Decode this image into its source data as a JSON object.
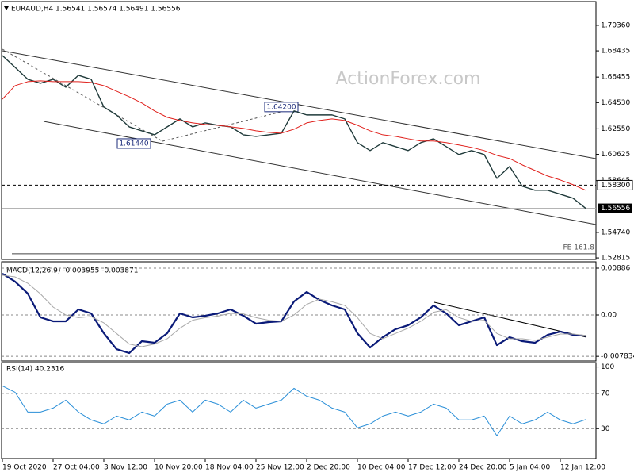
{
  "chart_data": [
    {
      "type": "line",
      "title": "EURAUD,H4 1.56541 1.56574 1.56491 1.56556",
      "watermark": "ActionForex.com",
      "ylim": [
        1.527,
        1.7215
      ],
      "yticks": [
        {
          "value": 1.7036,
          "label": "1.70360"
        },
        1.68435,
        1.66455,
        {
          "value": 1.6453,
          "label": "1.64530"
        },
        {
          "value": 1.6255,
          "label": "1.62550"
        },
        1.60625,
        1.58645,
        {
          "value": 1.5474,
          "label": "1.54740"
        },
        1.52815
      ],
      "grid": false,
      "series": [
        {
          "color": "#1f3a3a",
          "values": [
            1.6808,
            1.6719,
            1.6629,
            1.6599,
            1.6629,
            1.6569,
            1.6659,
            1.6629,
            1.642,
            1.636,
            1.627,
            1.624,
            1.621,
            1.627,
            1.633,
            1.627,
            1.63,
            1.6282,
            1.627,
            1.621,
            1.6198,
            1.621,
            1.6222,
            1.639,
            1.636,
            1.636,
            1.636,
            1.633,
            1.6151,
            1.6091,
            1.6151,
            1.6121,
            1.6091,
            1.6151,
            1.618,
            1.6121,
            1.6061,
            1.6091,
            1.6061,
            1.5881,
            1.5971,
            1.5822,
            1.5792,
            1.5792,
            1.5762,
            1.5732,
            1.56556
          ]
        },
        {
          "color": "#e0201c",
          "values": [
            1.6479,
            1.6581,
            1.6611,
            1.6617,
            1.6611,
            1.6611,
            1.6611,
            1.6605,
            1.6581,
            1.6539,
            1.6497,
            1.645,
            1.639,
            1.6342,
            1.6318,
            1.63,
            1.6288,
            1.6282,
            1.627,
            1.6258,
            1.624,
            1.6228,
            1.6222,
            1.6252,
            1.63,
            1.6318,
            1.633,
            1.6318,
            1.6282,
            1.624,
            1.621,
            1.6198,
            1.618,
            1.6163,
            1.6163,
            1.6151,
            1.6133,
            1.6115,
            1.6091,
            1.6055,
            1.6031,
            1.5983,
            1.5941,
            1.5899,
            1.5869,
            1.5834,
            1.5792
          ]
        }
      ],
      "levels": [
        {
          "label": "1.58300",
          "value": 1.583,
          "style": "dashed"
        },
        {
          "label": "1.56556",
          "value": 1.56556,
          "style": "current"
        },
        {
          "label": "FE 161.8",
          "value": 1.5313,
          "style": "solid"
        }
      ],
      "annotations": [
        {
          "label": "1.64200",
          "value": 1.642
        },
        {
          "label": "1.61440",
          "value": 1.6144
        }
      ]
    },
    {
      "type": "line",
      "title": "MACD(12,26,9) -0.003955 -0.003871",
      "ylim": [
        -0.00871,
        0.01006
      ],
      "yticks": [
        0.00886,
        {
          "value": 0,
          "label": "0.00"
        },
        -0.007834
      ],
      "grid": true,
      "series": [
        {
          "color": "#0a1a78",
          "values": [
            0.00781,
            0.00631,
            0.00406,
            -0.00045,
            -0.0012,
            -0.0012,
            0.00105,
            0.0003,
            -0.00345,
            -0.00646,
            -0.00721,
            -0.00496,
            -0.00526,
            -0.00345,
            0.0003,
            -0.00045,
            -0.00015,
            0.0003,
            0.00105,
            -0.00015,
            -0.00165,
            -0.00135,
            -0.0012,
            0.00255,
            0.00436,
            0.00285,
            0.0018,
            0.00105,
            -0.00345,
            -0.00616,
            -0.00421,
            -0.0027,
            -0.00195,
            -0.00045,
            0.0018,
            0.0003,
            -0.00195,
            -0.0012,
            -0.00045,
            -0.00571,
            -0.00421,
            -0.00496,
            -0.00526,
            -0.00376,
            -0.00315,
            -0.00376,
            -0.003955
          ]
        },
        {
          "color": "#a8a8a8",
          "values": [
            0.0075,
            0.0072,
            0.006,
            0.004,
            0.0015,
            0,
            -0.0005,
            -0.0003,
            -0.0015,
            -0.0035,
            -0.0055,
            -0.006,
            -0.0055,
            -0.0045,
            -0.0025,
            -0.001,
            -0.0005,
            -0.0002,
            0.0003,
            0.0002,
            -0.0005,
            -0.001,
            -0.0012,
            0,
            0.002,
            0.003,
            0.0025,
            0.0018,
            -0.0005,
            -0.0035,
            -0.0045,
            -0.0035,
            -0.0025,
            -0.0012,
            0.0005,
            0.001,
            -0.0005,
            -0.0012,
            -0.001,
            -0.0035,
            -0.0045,
            -0.0045,
            -0.0048,
            -0.0042,
            -0.0036,
            -0.0036,
            -0.003871
          ]
        }
      ]
    },
    {
      "type": "line",
      "title": "RSI(14) 40.2316",
      "ylim": [
        -4,
        105
      ],
      "yticks": [
        100,
        70,
        30
      ],
      "grid": true,
      "categories": [
        "19 Oct 2020",
        null,
        null,
        null,
        "27 Oct 04:00",
        null,
        null,
        null,
        "3 Nov 12:00",
        null,
        null,
        null,
        "10 Nov 20:00",
        null,
        null,
        null,
        "18 Nov 04:00",
        null,
        null,
        null,
        "25 Nov 12:00",
        null,
        null,
        null,
        "2 Dec 20:00",
        null,
        null,
        null,
        "10 Dec 04:00",
        null,
        null,
        null,
        "17 Dec 12:00",
        null,
        null,
        null,
        "24 Dec 20:00",
        null,
        null,
        null,
        "5 Jan 04:00",
        null,
        null,
        null,
        "12 Jan 12:00",
        null,
        null
      ],
      "series": [
        {
          "color": "#2a8fd8",
          "values": [
            78.5,
            71.3,
            48.8,
            48.8,
            53.3,
            62.3,
            48.8,
            39.9,
            35.4,
            44.3,
            39.9,
            48.8,
            44.3,
            57.8,
            62.3,
            48.8,
            62.3,
            57.8,
            48.8,
            62.3,
            53.3,
            57.8,
            62.3,
            75.8,
            66.8,
            62.3,
            53.3,
            48.8,
            30.9,
            35.4,
            44.3,
            48.8,
            44.3,
            48.8,
            57.8,
            53.3,
            39.9,
            39.9,
            44.3,
            21.9,
            44.3,
            35.4,
            39.9,
            48.8,
            39.9,
            35.4,
            40.2316
          ]
        }
      ]
    }
  ]
}
